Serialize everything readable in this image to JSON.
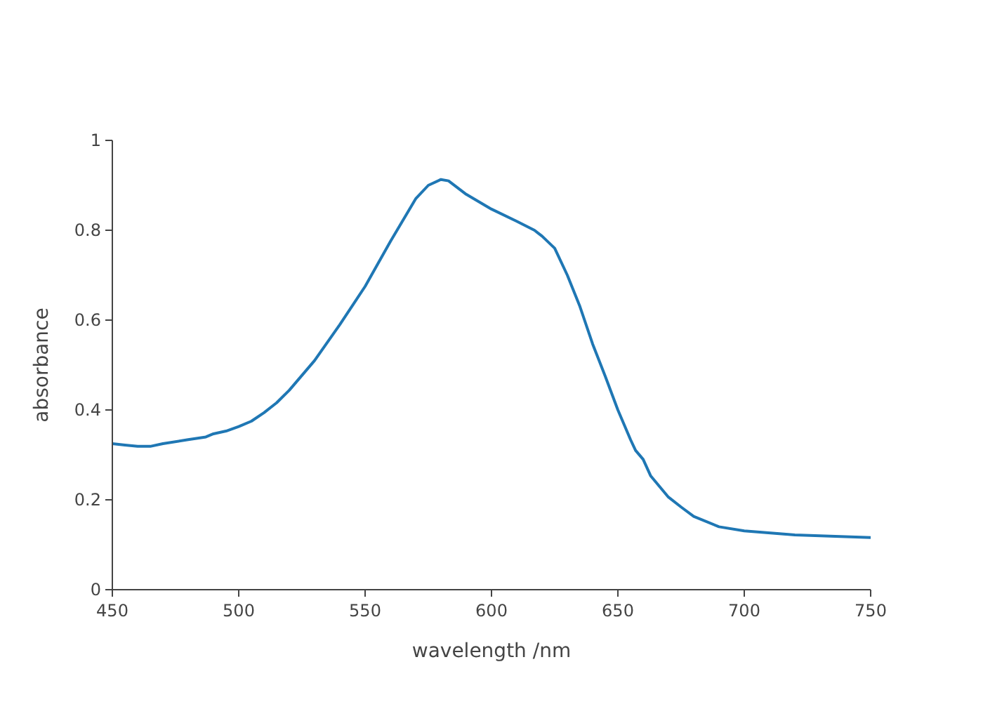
{
  "chart_data": {
    "type": "line",
    "xlabel": "wavelength /nm",
    "ylabel": "absorbance",
    "x": [
      450,
      455,
      460,
      465,
      470,
      480,
      487,
      490,
      495,
      500,
      505,
      510,
      515,
      520,
      530,
      540,
      550,
      555,
      560,
      570,
      575,
      580,
      583,
      590,
      600,
      610,
      617,
      620,
      625,
      630,
      635,
      640,
      645,
      650,
      655,
      657,
      660,
      663,
      670,
      675,
      680,
      690,
      700,
      720,
      750
    ],
    "series": [
      {
        "color": "#1f77b4",
        "values": [
          0.325,
          0.322,
          0.319,
          0.319,
          0.325,
          0.334,
          0.34,
          0.347,
          0.353,
          0.363,
          0.375,
          0.394,
          0.416,
          0.444,
          0.51,
          0.59,
          0.675,
          0.725,
          0.775,
          0.87,
          0.9,
          0.913,
          0.91,
          0.88,
          0.847,
          0.82,
          0.8,
          0.787,
          0.76,
          0.7,
          0.63,
          0.547,
          0.475,
          0.4,
          0.334,
          0.31,
          0.29,
          0.253,
          0.206,
          0.184,
          0.163,
          0.14,
          0.131,
          0.122,
          0.116
        ]
      }
    ],
    "xlim": [
      450,
      750
    ],
    "xticks": [
      450,
      500,
      550,
      600,
      650,
      700,
      750
    ],
    "ylim": [
      0,
      1
    ],
    "yticks": [
      0,
      0.2,
      0.4,
      0.6,
      0.8,
      1
    ],
    "grid": false
  }
}
